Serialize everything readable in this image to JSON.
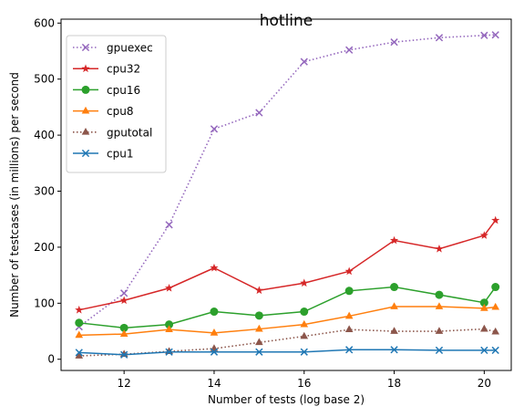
{
  "chart_data": {
    "type": "line",
    "title": "hotline",
    "xlabel": "Number of tests (log base 2)",
    "ylabel": "Number of testcases (in millions) per second",
    "xlim": [
      10.6,
      20.6
    ],
    "ylim": [
      -20,
      607
    ],
    "xticks": [
      12,
      14,
      16,
      18,
      20
    ],
    "yticks": [
      0,
      100,
      200,
      300,
      400,
      500,
      600
    ],
    "grid": false,
    "legend_position": "top-left",
    "x": [
      11,
      12,
      13,
      14,
      15,
      16,
      17,
      18,
      19,
      20,
      20.25
    ],
    "series": [
      {
        "name": "gpuexec",
        "color": "#9467bd",
        "marker": "x",
        "linestyle": "dotted",
        "values": [
          58,
          118,
          240,
          411,
          440,
          531,
          552,
          566,
          574,
          578,
          579
        ]
      },
      {
        "name": "cpu32",
        "color": "#d62728",
        "marker": "star",
        "linestyle": "solid",
        "values": [
          88,
          105,
          127,
          163,
          123,
          136,
          157,
          212,
          197,
          221,
          248
        ]
      },
      {
        "name": "cpu16",
        "color": "#2ca02c",
        "marker": "circle",
        "linestyle": "solid",
        "values": [
          65,
          56,
          62,
          85,
          78,
          85,
          122,
          129,
          115,
          101,
          129
        ]
      },
      {
        "name": "cpu8",
        "color": "#ff7f0e",
        "marker": "triangle",
        "linestyle": "solid",
        "values": [
          43,
          45,
          53,
          47,
          54,
          62,
          77,
          94,
          94,
          91,
          93
        ]
      },
      {
        "name": "gputotal",
        "color": "#8c564b",
        "marker": "triangle",
        "linestyle": "dotted",
        "values": [
          6,
          9,
          14,
          19,
          30,
          41,
          53,
          50,
          50,
          54,
          49
        ]
      },
      {
        "name": "cpu1",
        "color": "#1f77b4",
        "marker": "x",
        "linestyle": "solid",
        "values": [
          12,
          8,
          13,
          13,
          13,
          13,
          17,
          17,
          16,
          16,
          16
        ]
      }
    ]
  }
}
